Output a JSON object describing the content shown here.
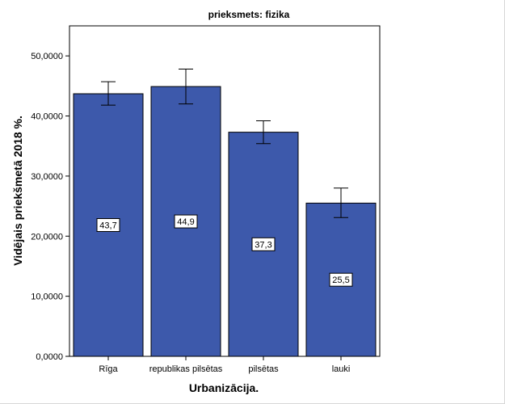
{
  "chart_data": {
    "type": "bar",
    "title": "prieksmets: fizika",
    "xlabel": "Urbanizācija.",
    "ylabel": "Vidējais priekšmetā 2018 %.",
    "categories": [
      "Rīga",
      "republikas pilsētas",
      "pilsētas",
      "lauki"
    ],
    "values": [
      43.7,
      44.9,
      37.3,
      25.5
    ],
    "value_labels": [
      "43,7",
      "44,9",
      "37,3",
      "25,5"
    ],
    "error_bars": [
      {
        "low": 41.8,
        "high": 45.7
      },
      {
        "low": 42.0,
        "high": 47.8
      },
      {
        "low": 35.4,
        "high": 39.2
      },
      {
        "low": 23.1,
        "high": 28.0
      }
    ],
    "ylim": [
      0,
      55
    ],
    "yticks": [
      0,
      10,
      20,
      30,
      40,
      50
    ],
    "ytick_labels": [
      "0,0000",
      "10,0000",
      "20,0000",
      "30,0000",
      "40,0000",
      "50,0000"
    ],
    "bar_color": "#3d59ab",
    "plot_background": "#ffffff",
    "grid": false,
    "legend": "none"
  }
}
